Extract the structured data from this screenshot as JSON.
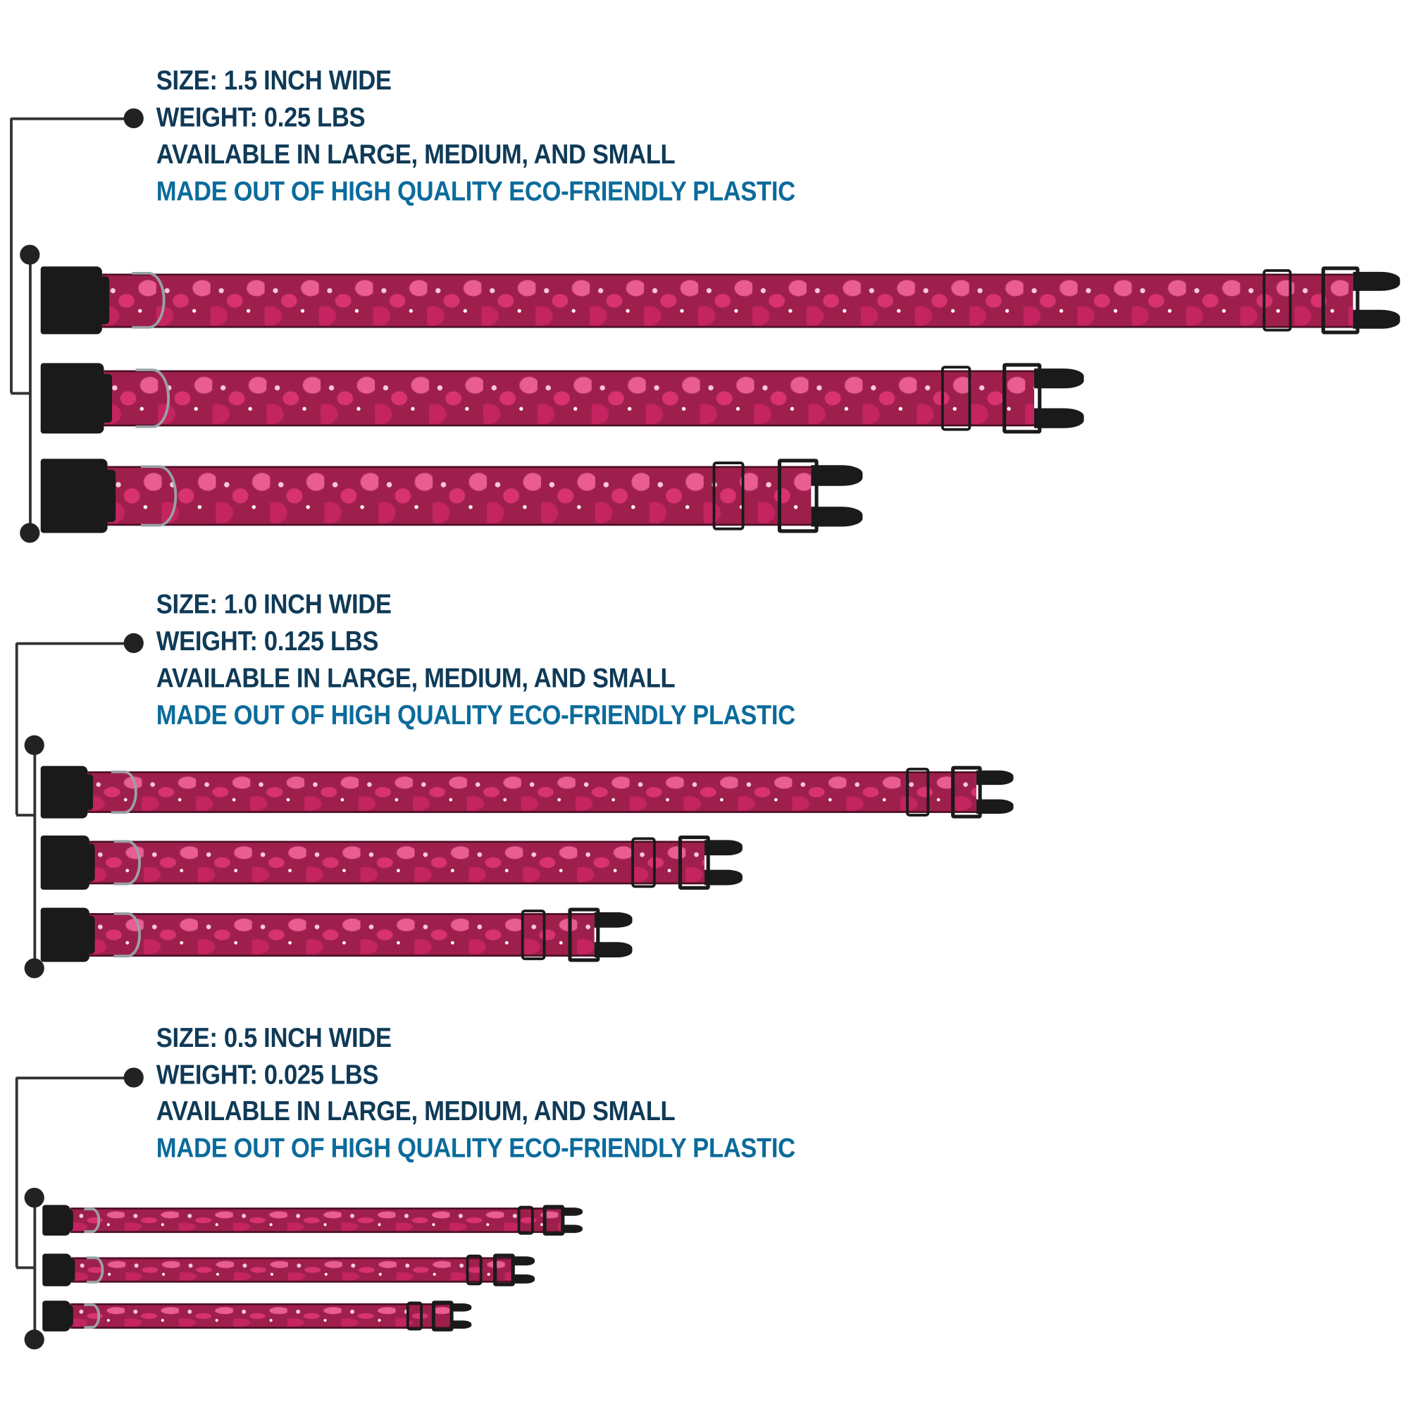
{
  "colors": {
    "heading": "#0f3a57",
    "highlight": "#0b6b9b",
    "strap": "#9e1f4c",
    "hardware": "#1a1a1a"
  },
  "sections": [
    {
      "size": "SIZE: 1.5 INCH WIDE",
      "weight": "WEIGHT: 0.25 LBS",
      "availability": "AVAILABLE IN LARGE, MEDIUM, AND SMALL",
      "material": "MADE OUT OF HIGH QUALITY ECO-FRIENDLY PLASTIC",
      "collars": [
        "large",
        "medium",
        "small"
      ]
    },
    {
      "size": "SIZE: 1.0 INCH WIDE",
      "weight": "WEIGHT: 0.125 LBS",
      "availability": "AVAILABLE IN LARGE, MEDIUM, AND SMALL",
      "material": "MADE OUT OF HIGH QUALITY ECO-FRIENDLY PLASTIC",
      "collars": [
        "large",
        "medium",
        "small"
      ]
    },
    {
      "size": "SIZE: 0.5 INCH WIDE",
      "weight": "WEIGHT: 0.025 LBS",
      "availability": "AVAILABLE IN LARGE, MEDIUM, AND SMALL",
      "material": "MADE OUT OF HIGH QUALITY ECO-FRIENDLY PLASTIC",
      "collars": [
        "large",
        "medium",
        "small"
      ]
    }
  ]
}
